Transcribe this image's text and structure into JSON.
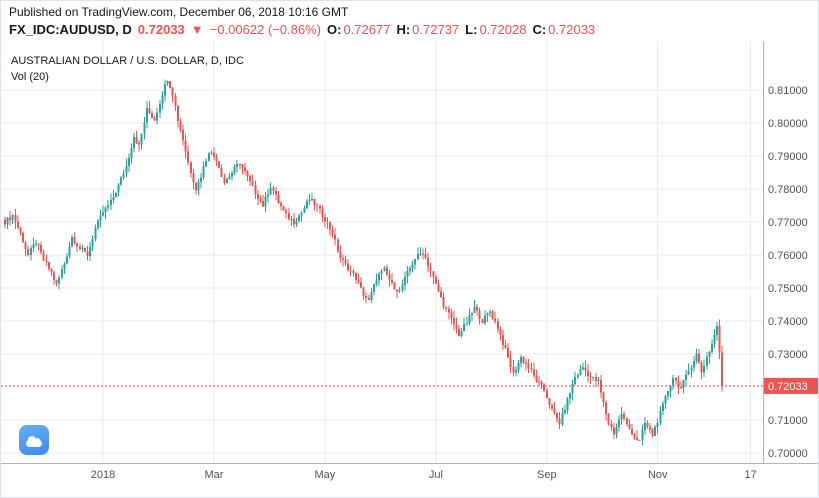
{
  "meta": {
    "published_line": "Published on TradingView.com, December 06, 2018 10:16 GMT"
  },
  "quote": {
    "symbol": "FX_IDC:AUDUSD, D",
    "last": "0.72033",
    "direction": "▼",
    "change": "−0.00622 (−0.86%)",
    "open_label": "O:",
    "open": "0.72677",
    "high_label": "H:",
    "high": "0.72737",
    "low_label": "L:",
    "low": "0.72028",
    "close_label": "C:",
    "close": "0.72033"
  },
  "legend": {
    "title": "AUSTRALIAN DOLLAR / U.S. DOLLAR, D, IDC",
    "indicator": "Vol (20)"
  },
  "chart": {
    "last_price_label": "0.72033",
    "colors": {
      "up": "#26a69a",
      "down": "#ef5350",
      "grid": "#e8ebef",
      "axis_line": "#b2b5be",
      "axis_text": "#50535e",
      "text": "#131722"
    }
  },
  "chart_data": {
    "type": "candlestick",
    "title": "AUSTRALIAN DOLLAR / U.S. DOLLAR, D, IDC",
    "symbol": "FX_IDC:AUDUSD",
    "timeframe": "D",
    "candle_count": 279,
    "last_close": 0.72033,
    "last_ohlc": {
      "open": 0.72677,
      "high": 0.72737,
      "low": 0.72028,
      "close": 0.72033
    },
    "y_axis": {
      "ticks": [
        0.81,
        0.8,
        0.79,
        0.78,
        0.77,
        0.76,
        0.75,
        0.74,
        0.73,
        0.72,
        0.71,
        0.7
      ],
      "format_decimals": 5,
      "visible_range": [
        0.697,
        0.8248
      ]
    },
    "x_axis": {
      "labels": [
        {
          "text": "2018",
          "i": 38
        },
        {
          "text": "Mar",
          "i": 81
        },
        {
          "text": "May",
          "i": 124
        },
        {
          "text": "Jul",
          "i": 167
        },
        {
          "text": "Sep",
          "i": 210
        },
        {
          "text": "Nov",
          "i": 253
        },
        {
          "text": "17",
          "i": 289
        }
      ]
    },
    "close_waypoints": [
      [
        0,
        0.77
      ],
      [
        3,
        0.772
      ],
      [
        6,
        0.7665
      ],
      [
        9,
        0.76
      ],
      [
        12,
        0.764
      ],
      [
        15,
        0.7585
      ],
      [
        18,
        0.7545
      ],
      [
        20,
        0.751
      ],
      [
        23,
        0.7575
      ],
      [
        26,
        0.7655
      ],
      [
        29,
        0.762
      ],
      [
        32,
        0.76
      ],
      [
        35,
        0.768
      ],
      [
        38,
        0.773
      ],
      [
        41,
        0.776
      ],
      [
        44,
        0.781
      ],
      [
        47,
        0.787
      ],
      [
        50,
        0.796
      ],
      [
        52,
        0.793
      ],
      [
        55,
        0.804
      ],
      [
        58,
        0.801
      ],
      [
        61,
        0.809
      ],
      [
        63,
        0.8135
      ],
      [
        65,
        0.809
      ],
      [
        67,
        0.801
      ],
      [
        69,
        0.795
      ],
      [
        71,
        0.788
      ],
      [
        74,
        0.78
      ],
      [
        76,
        0.784
      ],
      [
        79,
        0.7915
      ],
      [
        82,
        0.789
      ],
      [
        85,
        0.782
      ],
      [
        88,
        0.785
      ],
      [
        91,
        0.788
      ],
      [
        94,
        0.7835
      ],
      [
        97,
        0.779
      ],
      [
        100,
        0.775
      ],
      [
        103,
        0.781
      ],
      [
        106,
        0.776
      ],
      [
        109,
        0.772
      ],
      [
        112,
        0.77
      ],
      [
        115,
        0.773
      ],
      [
        118,
        0.777
      ],
      [
        121,
        0.7745
      ],
      [
        124,
        0.771
      ],
      [
        127,
        0.7665
      ],
      [
        130,
        0.759
      ],
      [
        133,
        0.756
      ],
      [
        136,
        0.753
      ],
      [
        139,
        0.748
      ],
      [
        141,
        0.746
      ],
      [
        144,
        0.753
      ],
      [
        147,
        0.7555
      ],
      [
        150,
        0.751
      ],
      [
        153,
        0.749
      ],
      [
        156,
        0.7545
      ],
      [
        159,
        0.759
      ],
      [
        162,
        0.761
      ],
      [
        164,
        0.757
      ],
      [
        167,
        0.751
      ],
      [
        170,
        0.745
      ],
      [
        173,
        0.7405
      ],
      [
        176,
        0.736
      ],
      [
        179,
        0.7395
      ],
      [
        182,
        0.744
      ],
      [
        185,
        0.74
      ],
      [
        188,
        0.743
      ],
      [
        191,
        0.738
      ],
      [
        194,
        0.731
      ],
      [
        197,
        0.724
      ],
      [
        200,
        0.729
      ],
      [
        203,
        0.726
      ],
      [
        206,
        0.722
      ],
      [
        209,
        0.719
      ],
      [
        212,
        0.713
      ],
      [
        215,
        0.709
      ],
      [
        218,
        0.716
      ],
      [
        221,
        0.723
      ],
      [
        224,
        0.726
      ],
      [
        227,
        0.723
      ],
      [
        230,
        0.7215
      ],
      [
        232,
        0.715
      ],
      [
        234,
        0.709
      ],
      [
        236,
        0.706
      ],
      [
        239,
        0.712
      ],
      [
        241,
        0.7085
      ],
      [
        244,
        0.705
      ],
      [
        246,
        0.7035
      ],
      [
        248,
        0.709
      ],
      [
        251,
        0.7055
      ],
      [
        254,
        0.712
      ],
      [
        257,
        0.719
      ],
      [
        259,
        0.723
      ],
      [
        262,
        0.7195
      ],
      [
        265,
        0.725
      ],
      [
        268,
        0.73
      ],
      [
        270,
        0.7245
      ],
      [
        272,
        0.729
      ],
      [
        274,
        0.733
      ],
      [
        276,
        0.7385
      ],
      [
        277,
        0.73
      ],
      [
        278,
        0.72033
      ]
    ]
  }
}
